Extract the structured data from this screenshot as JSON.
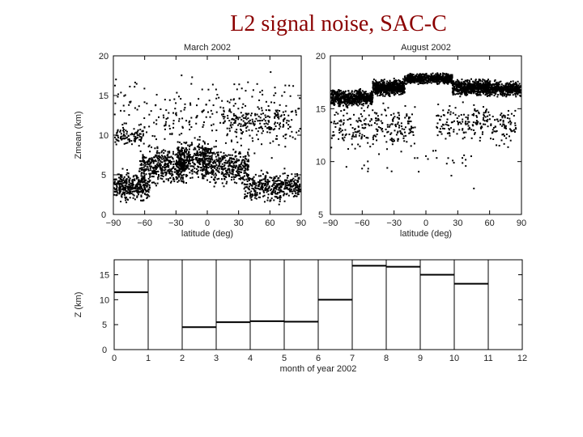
{
  "slide": {
    "title": "L2 signal noise, SAC-C"
  },
  "chart_data": [
    {
      "type": "scatter",
      "title": "March 2002",
      "xlabel": "latitude (deg)",
      "ylabel": "Zmean (km)",
      "xlim": [
        -90,
        90
      ],
      "ylim": [
        0,
        20
      ],
      "xticks": [
        -90,
        -60,
        -30,
        0,
        30,
        60,
        90
      ],
      "yticks": [
        0,
        5,
        10,
        15,
        20
      ],
      "series": [
        {
          "clusters": [
            {
              "x": [
                -90,
                -55
              ],
              "y": [
                1,
                6
              ],
              "n": 350
            },
            {
              "x": [
                -65,
                -20
              ],
              "y": [
                3,
                9
              ],
              "n": 450
            },
            {
              "x": [
                -30,
                5
              ],
              "y": [
                4,
                10
              ],
              "n": 350
            },
            {
              "x": [
                -5,
                40
              ],
              "y": [
                3,
                9
              ],
              "n": 380
            },
            {
              "x": [
                35,
                90
              ],
              "y": [
                1,
                6
              ],
              "n": 420
            },
            {
              "x": [
                -90,
                -60
              ],
              "y": [
                8,
                11.5
              ],
              "n": 80
            },
            {
              "x": [
                -90,
                90
              ],
              "y": [
                6,
                19
              ],
              "n": 300
            },
            {
              "x": [
                15,
                75
              ],
              "y": [
                9,
                14
              ],
              "n": 160
            }
          ]
        }
      ]
    },
    {
      "type": "scatter",
      "title": "August 2002",
      "xlabel": "latitude (deg)",
      "ylabel": "",
      "xlim": [
        -90,
        90
      ],
      "ylim": [
        5,
        20
      ],
      "xticks": [
        -90,
        -60,
        -30,
        0,
        30,
        60,
        90
      ],
      "yticks": [
        5,
        10,
        15,
        20
      ],
      "series": [
        {
          "clusters": [
            {
              "x": [
                -90,
                -50
              ],
              "y": [
                15,
                17
              ],
              "n": 600
            },
            {
              "x": [
                -50,
                -20
              ],
              "y": [
                16,
                18
              ],
              "n": 600
            },
            {
              "x": [
                -20,
                25
              ],
              "y": [
                17.2,
                18.5
              ],
              "n": 600
            },
            {
              "x": [
                25,
                60
              ],
              "y": [
                16,
                18
              ],
              "n": 550
            },
            {
              "x": [
                55,
                90
              ],
              "y": [
                16,
                17.8
              ],
              "n": 450
            },
            {
              "x": [
                -90,
                -10
              ],
              "y": [
                10.5,
                16
              ],
              "n": 250
            },
            {
              "x": [
                10,
                85
              ],
              "y": [
                11,
                16
              ],
              "n": 220
            },
            {
              "x": [
                -80,
                50
              ],
              "y": [
                7,
                12
              ],
              "n": 30
            }
          ]
        }
      ]
    },
    {
      "type": "step",
      "title": "",
      "xlabel": "month of year 2002",
      "ylabel": "Z (km)",
      "xlim": [
        0,
        12
      ],
      "ylim": [
        0,
        18
      ],
      "xticks": [
        0,
        1,
        2,
        3,
        4,
        5,
        6,
        7,
        8,
        9,
        10,
        11,
        12
      ],
      "yticks": [
        0,
        5,
        10,
        15
      ],
      "segments": [
        {
          "x0": 0,
          "x1": 1,
          "y": 11.5
        },
        {
          "x0": 2,
          "x1": 3,
          "y": 4.5
        },
        {
          "x0": 3,
          "x1": 4,
          "y": 5.5
        },
        {
          "x0": 4,
          "x1": 5,
          "y": 5.7
        },
        {
          "x0": 5,
          "x1": 6,
          "y": 5.6
        },
        {
          "x0": 6,
          "x1": 7,
          "y": 10
        },
        {
          "x0": 7,
          "x1": 8,
          "y": 16.8
        },
        {
          "x0": 8,
          "x1": 9,
          "y": 16.6
        },
        {
          "x0": 9,
          "x1": 10,
          "y": 15
        },
        {
          "x0": 10,
          "x1": 11,
          "y": 13.2
        }
      ]
    }
  ]
}
